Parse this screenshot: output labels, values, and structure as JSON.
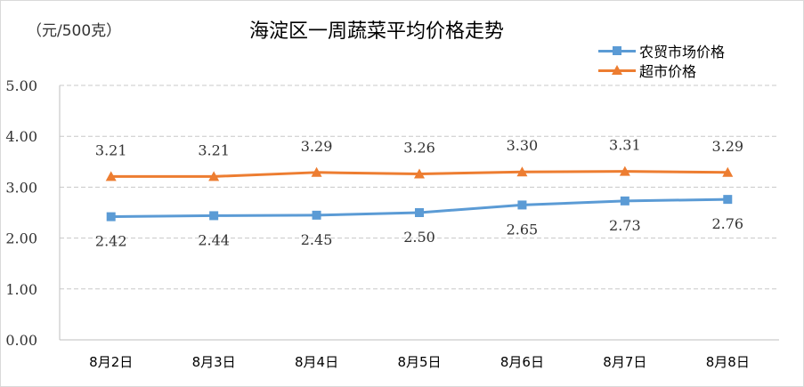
{
  "chart_data": {
    "type": "line",
    "title": "海淀区一周蔬菜平均价格走势",
    "unit_label": "（元/500克）",
    "categories": [
      "8月2日",
      "8月3日",
      "8月4日",
      "8月5日",
      "8月6日",
      "8月7日",
      "8月8日"
    ],
    "series": [
      {
        "name": "农贸市场价格",
        "values": [
          2.42,
          2.44,
          2.45,
          2.5,
          2.65,
          2.73,
          2.76
        ],
        "labels": [
          "2.42",
          "2.44",
          "2.45",
          "2.50",
          "2.65",
          "2.73",
          "2.76"
        ],
        "color": "#5B9BD5",
        "marker": "square",
        "label_position": "below"
      },
      {
        "name": "超市价格",
        "values": [
          3.21,
          3.21,
          3.29,
          3.26,
          3.3,
          3.31,
          3.29
        ],
        "labels": [
          "3.21",
          "3.21",
          "3.29",
          "3.26",
          "3.30",
          "3.31",
          "3.29"
        ],
        "color": "#ED7D31",
        "marker": "triangle",
        "label_position": "above"
      }
    ],
    "ylim": [
      0,
      5
    ],
    "yticks": [
      "0.00",
      "1.00",
      "2.00",
      "3.00",
      "4.00",
      "5.00"
    ],
    "grid": true,
    "legend_position": "top-right"
  }
}
